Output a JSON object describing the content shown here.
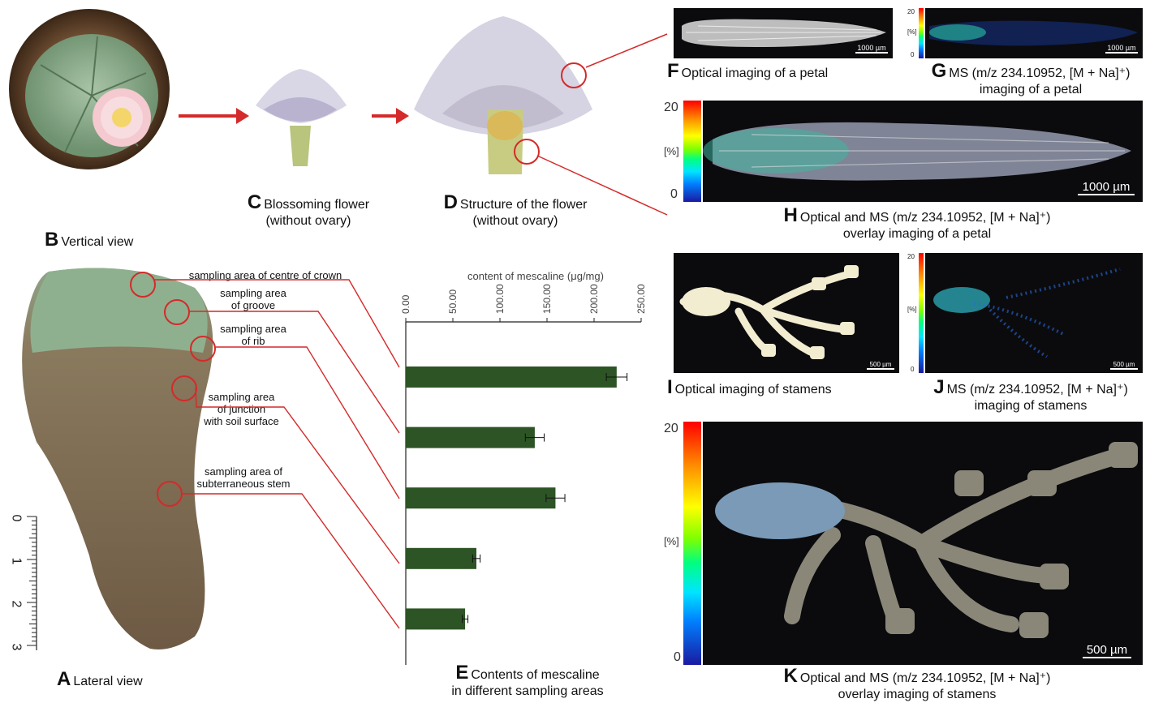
{
  "panels": {
    "A": {
      "letter": "A",
      "caption": "Lateral view"
    },
    "B": {
      "letter": "B",
      "caption": "Vertical view"
    },
    "C": {
      "letter": "C",
      "caption_l1": "Blossoming flower",
      "caption_l2": "(without ovary)"
    },
    "D": {
      "letter": "D",
      "caption_l1": "Structure of the flower",
      "caption_l2": "(without ovary)"
    },
    "E": {
      "letter": "E",
      "caption_l1": "Contents of mescaline",
      "caption_l2": "in different sampling areas"
    },
    "F": {
      "letter": "F",
      "caption": "Optical imaging of a petal",
      "scale": "1000 µm"
    },
    "G": {
      "letter": "G",
      "caption_l1": "MS (m/z 234.10952, [M + Na]⁺)",
      "caption_l2": "imaging of a petal",
      "scale": "1000 µm",
      "cb_top": "20",
      "cb_bottom": "0",
      "cb_unit": "[%]"
    },
    "H": {
      "letter": "H",
      "caption_l1": "Optical and MS (m/z 234.10952, [M + Na]⁺)",
      "caption_l2": "overlay imaging of a petal",
      "scale": "1000 µm",
      "cb_top": "20",
      "cb_bottom": "0",
      "cb_unit": "[%]"
    },
    "I": {
      "letter": "I",
      "caption": "Optical imaging of stamens",
      "scale": "500 µm"
    },
    "J": {
      "letter": "J",
      "caption_l1": "MS (m/z 234.10952, [M + Na]⁺)",
      "caption_l2": "imaging of stamens",
      "scale": "500 µm",
      "cb_top": "20",
      "cb_bottom": "0",
      "cb_unit": "[%]"
    },
    "K": {
      "letter": "K",
      "caption_l1": "Optical and MS (m/z 234.10952, [M + Na]⁺)",
      "caption_l2": "overlay imaging of stamens",
      "scale": "500 µm",
      "cb_top": "20",
      "cb_bottom": "0",
      "cb_unit": "[%]"
    }
  },
  "sampling_areas": [
    "sampling area of centre of crown",
    "sampling area of groove",
    "sampling area of rib",
    "sampling area of junction with soil surface",
    "sampling area of subterraneous stem"
  ],
  "sampling_labels": {
    "s1": "sampling area of centre of crown",
    "s2a": "sampling area",
    "s2b": "of groove",
    "s3a": "sampling area",
    "s3b": "of rib",
    "s4a": "sampling area",
    "s4b": "of junction",
    "s4c": "with soil surface",
    "s5a": "sampling area of",
    "s5b": "subterraneous stem"
  },
  "ruler": {
    "ticks": [
      "0",
      "1",
      "2",
      "3"
    ]
  },
  "chart_data": {
    "type": "bar",
    "orientation": "horizontal",
    "xlabel": "content of mescaline (μg/mg)",
    "xlim": [
      0,
      250
    ],
    "xticks": [
      "0.00",
      "50.00",
      "100.00",
      "150.00",
      "200.00",
      "250.00"
    ],
    "tick_values": [
      0,
      50,
      100,
      150,
      200,
      250
    ],
    "categories": [
      "sampling area of centre of crown",
      "sampling area of groove",
      "sampling area of rib",
      "sampling area of junction with soil surface",
      "sampling area of subterraneous stem"
    ],
    "values": [
      224,
      137,
      159,
      75,
      63
    ],
    "errors": [
      11,
      10,
      10,
      4,
      3
    ],
    "bar_color": "#2d5425",
    "grid": false
  }
}
